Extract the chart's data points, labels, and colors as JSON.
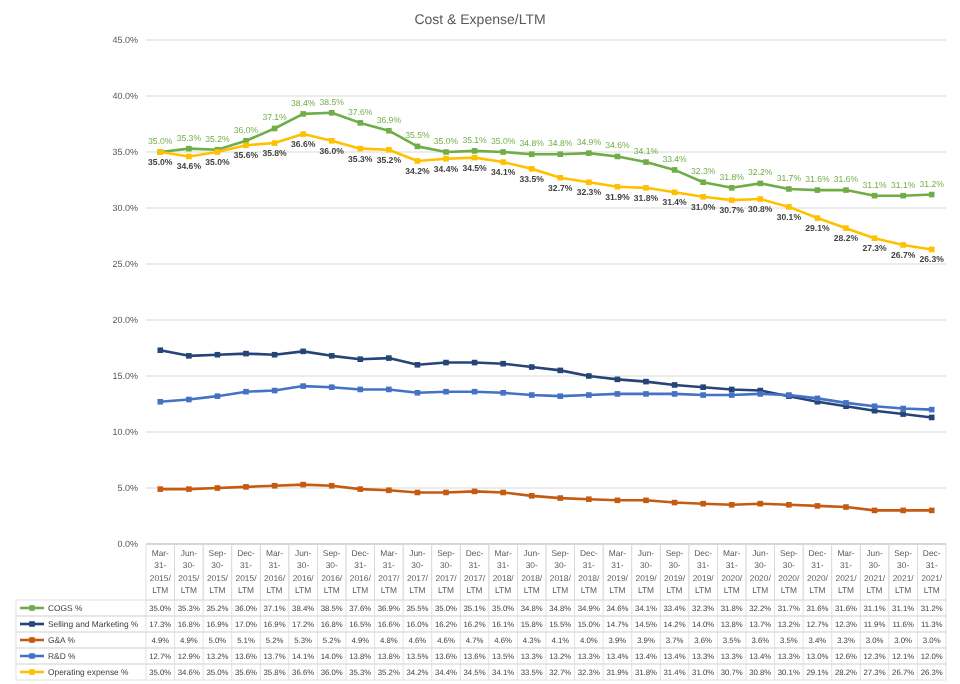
{
  "chart_data": {
    "type": "line",
    "title": "Cost & Expense/LTM",
    "categories": [
      "Mar-31-2015/LTM",
      "Jun-30-2015/LTM",
      "Sep-30-2015/LTM",
      "Dec-31-2015/LTM",
      "Mar-31-2016/LTM",
      "Jun-30-2016/LTM",
      "Sep-30-2016/LTM",
      "Dec-31-2016/LTM",
      "Mar-31-2017/LTM",
      "Jun-30-2017/LTM",
      "Sep-30-2017/LTM",
      "Dec-31-2017/LTM",
      "Mar-31-2018/LTM",
      "Jun-30-2018/LTM",
      "Sep-30-2018/LTM",
      "Dec-31-2018/LTM",
      "Mar-31-2019/LTM",
      "Jun-30-2019/LTM",
      "Sep-30-2019/LTM",
      "Dec-31-2019/LTM",
      "Mar-31-2020/LTM",
      "Jun-30-2020/LTM",
      "Sep-30-2020/LTM",
      "Dec-31-2020/LTM",
      "Mar-31-2021/LTM",
      "Jun-30-2021/LTM",
      "Sep-30-2021/LTM",
      "Dec-31-2021/LTM"
    ],
    "series": [
      {
        "name": "COGS %",
        "color": "#70ad47",
        "data_labels": true,
        "values": [
          35.0,
          35.3,
          35.2,
          36.0,
          37.1,
          38.4,
          38.5,
          37.6,
          36.9,
          35.5,
          35.0,
          35.1,
          35.0,
          34.8,
          34.8,
          34.9,
          34.6,
          34.1,
          33.4,
          32.3,
          31.8,
          32.2,
          31.7,
          31.6,
          31.6,
          31.1,
          31.1,
          31.2
        ],
        "value_labels": [
          "35.0%",
          "35.3%",
          "35.2%",
          "36.0%",
          "37.1%",
          "38.4%",
          "38.5%",
          "37.6%",
          "36.9%",
          "35.5%",
          "35.0%",
          "35.1%",
          "35.0%",
          "34.8%",
          "34.8%",
          "34.9%",
          "34.6%",
          "34.1%",
          "33.4%",
          "32.3%",
          "31.8%",
          "32.2%",
          "31.7%",
          "31.6%",
          "31.6%",
          "31.1%",
          "31.1%",
          "31.2%"
        ]
      },
      {
        "name": "Selling and Marketing %",
        "color": "#264478",
        "values": [
          17.3,
          16.8,
          16.9,
          17.0,
          16.9,
          17.2,
          16.8,
          16.5,
          16.6,
          16.0,
          16.2,
          16.2,
          16.1,
          15.8,
          15.5,
          15.0,
          14.7,
          14.5,
          14.2,
          14.0,
          13.8,
          13.7,
          13.2,
          12.7,
          12.3,
          11.9,
          11.6,
          11.3
        ],
        "value_labels": [
          "17.3%",
          "16.8%",
          "16.9%",
          "17.0%",
          "16.9%",
          "17.2%",
          "16.8%",
          "16.5%",
          "16.6%",
          "16.0%",
          "16.2%",
          "16.2%",
          "16.1%",
          "15.8%",
          "15.5%",
          "15.0%",
          "14.7%",
          "14.5%",
          "14.2%",
          "14.0%",
          "13.8%",
          "13.7%",
          "13.2%",
          "12.7%",
          "12.3%",
          "11.9%",
          "11.6%",
          "11.3%"
        ]
      },
      {
        "name": "G&A %",
        "color": "#c55a11",
        "values": [
          4.9,
          4.9,
          5.0,
          5.1,
          5.2,
          5.3,
          5.2,
          4.9,
          4.8,
          4.6,
          4.6,
          4.7,
          4.6,
          4.3,
          4.1,
          4.0,
          3.9,
          3.9,
          3.7,
          3.6,
          3.5,
          3.6,
          3.5,
          3.4,
          3.3,
          3.0,
          3.0,
          3.0
        ],
        "value_labels": [
          "4.9%",
          "4.9%",
          "5.0%",
          "5.1%",
          "5.2%",
          "5.3%",
          "5.2%",
          "4.9%",
          "4.8%",
          "4.6%",
          "4.6%",
          "4.7%",
          "4.6%",
          "4.3%",
          "4.1%",
          "4.0%",
          "3.9%",
          "3.9%",
          "3.7%",
          "3.6%",
          "3.5%",
          "3.6%",
          "3.5%",
          "3.4%",
          "3.3%",
          "3.0%",
          "3.0%",
          "3.0%"
        ]
      },
      {
        "name": "R&D %",
        "color": "#4472c4",
        "values": [
          12.7,
          12.9,
          13.2,
          13.6,
          13.7,
          14.1,
          14.0,
          13.8,
          13.8,
          13.5,
          13.6,
          13.6,
          13.5,
          13.3,
          13.2,
          13.3,
          13.4,
          13.4,
          13.4,
          13.3,
          13.3,
          13.4,
          13.3,
          13.0,
          12.6,
          12.3,
          12.1,
          12.0
        ],
        "value_labels": [
          "12.7%",
          "12.9%",
          "13.2%",
          "13.6%",
          "13.7%",
          "14.1%",
          "14.0%",
          "13.8%",
          "13.8%",
          "13.5%",
          "13.6%",
          "13.6%",
          "13.5%",
          "13.3%",
          "13.2%",
          "13.3%",
          "13.4%",
          "13.4%",
          "13.4%",
          "13.3%",
          "13.3%",
          "13.4%",
          "13.3%",
          "13.0%",
          "12.6%",
          "12.3%",
          "12.1%",
          "12.0%"
        ]
      },
      {
        "name": "Operating expense %",
        "color": "#ffc000",
        "data_labels": true,
        "values": [
          35.0,
          34.6,
          35.0,
          35.6,
          35.8,
          36.6,
          36.0,
          35.3,
          35.2,
          34.2,
          34.4,
          34.5,
          34.1,
          33.5,
          32.7,
          32.3,
          31.9,
          31.8,
          31.4,
          31.0,
          30.7,
          30.8,
          30.1,
          29.1,
          28.2,
          27.3,
          26.7,
          26.3
        ],
        "value_labels": [
          "35.0%",
          "34.6%",
          "35.0%",
          "35.6%",
          "35.8%",
          "36.6%",
          "36.0%",
          "35.3%",
          "35.2%",
          "34.2%",
          "34.4%",
          "34.5%",
          "34.1%",
          "33.5%",
          "32.7%",
          "32.3%",
          "31.9%",
          "31.8%",
          "31.4%",
          "31.0%",
          "30.7%",
          "30.8%",
          "30.1%",
          "29.1%",
          "28.2%",
          "27.3%",
          "26.7%",
          "26.3%"
        ]
      }
    ],
    "ylim": [
      0,
      45
    ],
    "yticks": [
      {
        "value": 0,
        "label": "0.0%"
      },
      {
        "value": 5,
        "label": "5.0%"
      },
      {
        "value": 10,
        "label": "10.0%"
      },
      {
        "value": 15,
        "label": "15.0%"
      },
      {
        "value": 20,
        "label": "20.0%"
      },
      {
        "value": 25,
        "label": "25.0%"
      },
      {
        "value": 30,
        "label": "30.0%"
      },
      {
        "value": 35,
        "label": "35.0%"
      },
      {
        "value": 40,
        "label": "40.0%"
      },
      {
        "value": 45,
        "label": "45.0%"
      }
    ],
    "grid": "y",
    "legend": "bottom",
    "marker": "square",
    "line_style": "solid"
  }
}
